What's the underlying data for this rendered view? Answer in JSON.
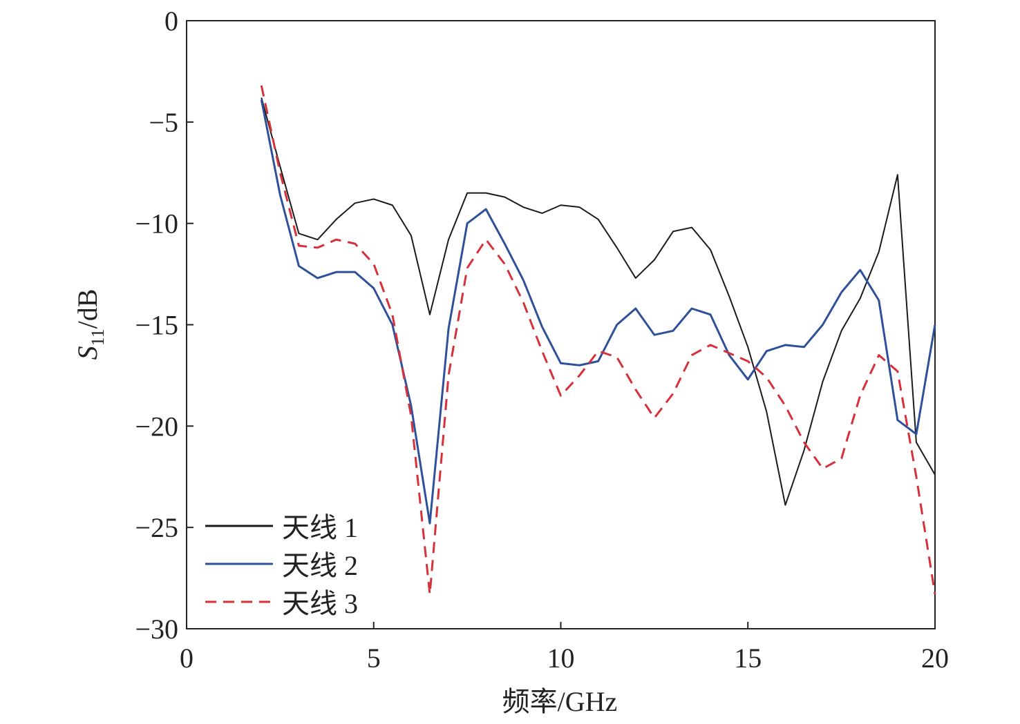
{
  "chart_data": {
    "type": "line",
    "xlabel": "频率/GHz",
    "ylabel_parts": [
      "S",
      "11",
      "/dB"
    ],
    "x": [
      2,
      2.5,
      3,
      3.5,
      4,
      4.5,
      5,
      5.5,
      6,
      6.5,
      7,
      7.5,
      8,
      8.5,
      9,
      9.5,
      10,
      10.5,
      11,
      11.5,
      12,
      12.5,
      13,
      13.5,
      14,
      14.5,
      15,
      15.5,
      16,
      16.5,
      17,
      17.5,
      18,
      18.5,
      19,
      19.5,
      20
    ],
    "series": [
      {
        "name": "天线 1",
        "color": "#1a1a1a",
        "dash": false,
        "values": [
          -3.8,
          -7.2,
          -10.5,
          -10.8,
          -9.8,
          -9.0,
          -8.8,
          -9.1,
          -10.6,
          -14.5,
          -10.8,
          -8.5,
          -8.5,
          -8.7,
          -9.2,
          -9.5,
          -9.1,
          -9.2,
          -9.8,
          -11.2,
          -12.7,
          -11.8,
          -10.4,
          -10.2,
          -11.3,
          -13.6,
          -16.1,
          -19.3,
          -23.9,
          -21.2,
          -17.8,
          -15.3,
          -13.7,
          -11.4,
          -7.6,
          -20.8,
          -22.4
        ]
      },
      {
        "name": "天线 2",
        "color": "#2e4f9a",
        "dash": false,
        "values": [
          -3.9,
          -8.6,
          -12.1,
          -12.7,
          -12.4,
          -12.4,
          -13.2,
          -15.0,
          -19.0,
          -24.8,
          -15.2,
          -10.0,
          -9.3,
          -11.0,
          -12.8,
          -15.1,
          -16.9,
          -17.0,
          -16.8,
          -15.0,
          -14.2,
          -15.5,
          -15.3,
          -14.2,
          -14.5,
          -16.5,
          -17.7,
          -16.3,
          -16.0,
          -16.1,
          -15.0,
          -13.4,
          -12.3,
          -13.8,
          -19.7,
          -20.4,
          -15.0
        ]
      },
      {
        "name": "天线 3",
        "color": "#d6303a",
        "dash": true,
        "values": [
          -3.2,
          -7.5,
          -11.1,
          -11.2,
          -10.8,
          -11.0,
          -12.0,
          -14.5,
          -19.5,
          -28.3,
          -17.5,
          -12.2,
          -10.8,
          -12.0,
          -13.9,
          -16.3,
          -18.5,
          -17.5,
          -16.3,
          -16.6,
          -18.2,
          -19.6,
          -18.4,
          -16.5,
          -16.0,
          -16.4,
          -16.8,
          -17.6,
          -19.0,
          -20.8,
          -22.1,
          -21.6,
          -18.5,
          -16.5,
          -17.3,
          -22.5,
          -28.3
        ]
      }
    ],
    "xlim": [
      0,
      20
    ],
    "xticks": [
      0,
      5,
      10,
      15,
      20
    ],
    "ylim": [
      -30,
      0
    ],
    "yticks": [
      {
        "value": -30,
        "label": "−30"
      },
      {
        "value": -25,
        "label": "−25"
      },
      {
        "value": -20,
        "label": "−20"
      },
      {
        "value": -15,
        "label": "−15"
      },
      {
        "value": -10,
        "label": "−10"
      },
      {
        "value": -5,
        "label": "−5"
      },
      0
    ],
    "legend": "lower left"
  }
}
